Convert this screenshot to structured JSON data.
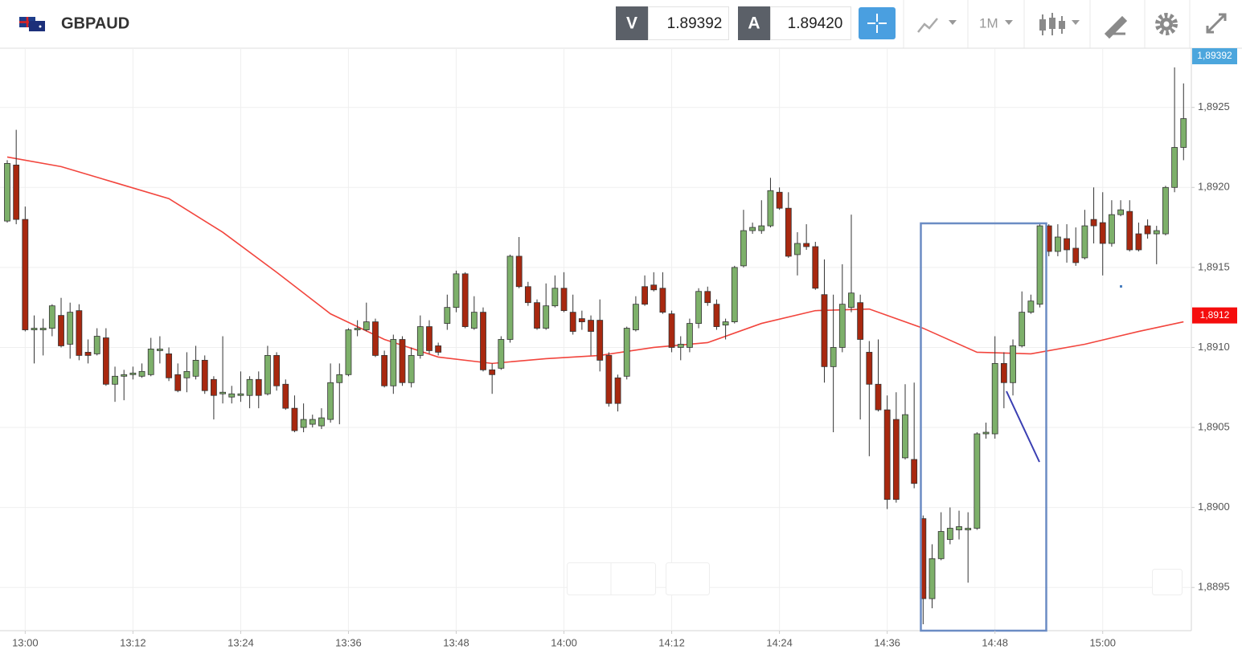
{
  "header": {
    "title": "GBPAUD",
    "bid_label": "V",
    "bid": "1.89392",
    "ask_label": "A",
    "ask": "1.89420",
    "timeframe": "1M"
  },
  "chart_data": {
    "type": "candlestick",
    "x": [
      "12:58",
      "12:59",
      "13:00",
      "13:01",
      "13:02",
      "13:03",
      "13:04",
      "13:05",
      "13:06",
      "13:07",
      "13:08",
      "13:09",
      "13:10",
      "13:11",
      "13:12",
      "13:13",
      "13:14",
      "13:15",
      "13:16",
      "13:17",
      "13:18",
      "13:19",
      "13:20",
      "13:21",
      "13:22",
      "13:23",
      "13:24",
      "13:25",
      "13:26",
      "13:27",
      "13:28",
      "13:29",
      "13:30",
      "13:31",
      "13:32",
      "13:33",
      "13:34",
      "13:35",
      "13:36",
      "13:37",
      "13:38",
      "13:39",
      "13:40",
      "13:41",
      "13:42",
      "13:43",
      "13:44",
      "13:45",
      "13:46",
      "13:47",
      "13:48",
      "13:49",
      "13:50",
      "13:51",
      "13:52",
      "13:53",
      "13:54",
      "13:55",
      "13:56",
      "13:57",
      "13:58",
      "13:59",
      "14:00",
      "14:01",
      "14:02",
      "14:03",
      "14:04",
      "14:05",
      "14:06",
      "14:07",
      "14:08",
      "14:09",
      "14:10",
      "14:11",
      "14:12",
      "14:13",
      "14:14",
      "14:15",
      "14:16",
      "14:17",
      "14:18",
      "14:19",
      "14:20",
      "14:21",
      "14:22",
      "14:23",
      "14:24",
      "14:25",
      "14:26",
      "14:27",
      "14:28",
      "14:29",
      "14:30",
      "14:31",
      "14:32",
      "14:33",
      "14:34",
      "14:35",
      "14:36",
      "14:37",
      "14:38",
      "14:39",
      "14:40",
      "14:41",
      "14:42",
      "14:43",
      "14:44",
      "14:45",
      "14:46",
      "14:47",
      "14:48",
      "14:49",
      "14:50",
      "14:51",
      "14:52",
      "14:53",
      "14:54",
      "14:55",
      "14:56",
      "14:57",
      "14:58",
      "14:59",
      "15:00",
      "15:01",
      "15:02",
      "15:03",
      "15:04",
      "15:05",
      "15:06",
      "15:07",
      "15:08",
      "15:09"
    ],
    "open": [
      1.89179,
      1.89214,
      1.8918,
      1.89111,
      1.89111,
      1.89112,
      1.8912,
      1.89102,
      1.89123,
      1.89097,
      1.89096,
      1.89106,
      1.89077,
      1.89082,
      1.89083,
      1.89082,
      1.89083,
      1.89098,
      1.89096,
      1.89083,
      1.89081,
      1.89082,
      1.89092,
      1.8908,
      1.89071,
      1.89069,
      1.8907,
      1.8907,
      1.8908,
      1.89071,
      1.89095,
      1.89077,
      1.89062,
      1.8905,
      1.89052,
      1.89051,
      1.89055,
      1.89078,
      1.89083,
      1.89111,
      1.89111,
      1.89116,
      1.89095,
      1.89076,
      1.89105,
      1.89078,
      1.89095,
      1.89113,
      1.89101,
      1.89115,
      1.89125,
      1.89146,
      1.89112,
      1.89122,
      1.89086,
      1.89087,
      1.89105,
      1.89157,
      1.89138,
      1.89128,
      1.89112,
      1.89126,
      1.89137,
      1.89122,
      1.89118,
      1.89117,
      1.89117,
      1.89095,
      1.89081,
      1.89082,
      1.89111,
      1.89138,
      1.89139,
      1.89137,
      1.89121,
      1.891,
      1.891,
      1.89115,
      1.89135,
      1.89127,
      1.89114,
      1.89116,
      1.89151,
      1.89173,
      1.89173,
      1.89176,
      1.89197,
      1.89187,
      1.89158,
      1.89165,
      1.89163,
      1.89133,
      1.89088,
      1.891,
      1.89125,
      1.89128,
      1.89097,
      1.89077,
      1.89061,
      1.89055,
      1.89031,
      1.8903,
      1.88993,
      1.88943,
      1.88968,
      1.8898,
      1.88986,
      1.88986,
      1.88987,
      1.89046,
      1.89046,
      1.8909,
      1.89078,
      1.89101,
      1.89122,
      1.89127,
      1.89176,
      1.8916,
      1.89168,
      1.89162,
      1.89156,
      1.8918,
      1.89178,
      1.89165,
      1.89183,
      1.89185,
      1.89171,
      1.89176,
      1.89171,
      1.89171,
      1.892,
      1.89225
    ],
    "high": [
      1.89217,
      1.89236,
      1.89188,
      1.8912,
      1.89118,
      1.89127,
      1.89131,
      1.89128,
      1.89127,
      1.89105,
      1.89112,
      1.89112,
      1.89088,
      1.89086,
      1.89088,
      1.8909,
      1.89106,
      1.89107,
      1.891,
      1.8909,
      1.89097,
      1.89101,
      1.89095,
      1.89082,
      1.89107,
      1.89076,
      1.89085,
      1.89082,
      1.89085,
      1.89101,
      1.89097,
      1.8908,
      1.8907,
      1.89065,
      1.89058,
      1.89062,
      1.8909,
      1.8909,
      1.89112,
      1.89117,
      1.89128,
      1.89118,
      1.89098,
      1.89108,
      1.89107,
      1.891,
      1.8912,
      1.89117,
      1.89103,
      1.89133,
      1.89148,
      1.89147,
      1.89132,
      1.89125,
      1.8909,
      1.89107,
      1.89158,
      1.89169,
      1.89141,
      1.8913,
      1.8914,
      1.89145,
      1.89147,
      1.89133,
      1.89123,
      1.8912,
      1.8913,
      1.89097,
      1.89083,
      1.89113,
      1.89132,
      1.89145,
      1.89147,
      1.89147,
      1.89123,
      1.89107,
      1.89118,
      1.89137,
      1.89138,
      1.8913,
      1.89118,
      1.89151,
      1.89186,
      1.89178,
      1.89192,
      1.89206,
      1.892,
      1.89197,
      1.89172,
      1.89177,
      1.89166,
      1.89155,
      1.89133,
      1.89152,
      1.89183,
      1.89133,
      1.89104,
      1.89105,
      1.8907,
      1.89072,
      1.89077,
      1.89078,
      1.88995,
      1.88977,
      1.88997,
      1.89,
      1.88998,
      1.88997,
      1.89047,
      1.89053,
      1.89107,
      1.89097,
      1.89105,
      1.89135,
      1.89133,
      1.89177,
      1.89177,
      1.89177,
      1.89177,
      1.89175,
      1.89186,
      1.892,
      1.89197,
      1.89192,
      1.89192,
      1.89192,
      1.89178,
      1.8918,
      1.89176,
      1.89201,
      1.89275,
      1.89265
    ],
    "low": [
      1.89178,
      1.89177,
      1.8911,
      1.8909,
      1.89095,
      1.89107,
      1.891,
      1.89093,
      1.89092,
      1.8909,
      1.89095,
      1.89076,
      1.89066,
      1.89067,
      1.8908,
      1.89081,
      1.89082,
      1.8909,
      1.89079,
      1.89072,
      1.89072,
      1.8908,
      1.89071,
      1.89055,
      1.89065,
      1.89065,
      1.89066,
      1.89062,
      1.89062,
      1.8907,
      1.89073,
      1.89061,
      1.89047,
      1.89047,
      1.8905,
      1.89049,
      1.89053,
      1.89052,
      1.89082,
      1.89107,
      1.8911,
      1.89094,
      1.89075,
      1.89071,
      1.89076,
      1.89075,
      1.89093,
      1.89096,
      1.89095,
      1.89111,
      1.89122,
      1.89112,
      1.89111,
      1.89085,
      1.89071,
      1.89086,
      1.89103,
      1.89137,
      1.89126,
      1.89111,
      1.89111,
      1.89125,
      1.89122,
      1.89108,
      1.89111,
      1.89095,
      1.89085,
      1.89063,
      1.8906,
      1.8908,
      1.8911,
      1.89126,
      1.89135,
      1.89121,
      1.89097,
      1.89092,
      1.89097,
      1.89112,
      1.89126,
      1.89111,
      1.89105,
      1.89115,
      1.8915,
      1.89171,
      1.89171,
      1.89175,
      1.89186,
      1.89156,
      1.89145,
      1.89161,
      1.89136,
      1.89078,
      1.89047,
      1.89097,
      1.89122,
      1.89055,
      1.89032,
      1.8906,
      1.88999,
      1.89003,
      1.8903,
      1.89012,
      1.88927,
      1.88937,
      1.88967,
      1.88977,
      1.8898,
      1.88953,
      1.88986,
      1.89043,
      1.89043,
      1.89062,
      1.8907,
      1.891,
      1.89121,
      1.89125,
      1.89157,
      1.89157,
      1.89153,
      1.89151,
      1.89155,
      1.89165,
      1.89145,
      1.89163,
      1.89182,
      1.8916,
      1.8916,
      1.89168,
      1.89152,
      1.8917,
      1.89197,
      1.89217
    ],
    "close": [
      1.89215,
      1.8918,
      1.89111,
      1.89112,
      1.89112,
      1.89126,
      1.89101,
      1.89122,
      1.89095,
      1.89095,
      1.89107,
      1.89077,
      1.89082,
      1.89083,
      1.89084,
      1.89085,
      1.89099,
      1.89099,
      1.89081,
      1.89073,
      1.89085,
      1.89092,
      1.89073,
      1.8907,
      1.89072,
      1.89071,
      1.89071,
      1.8908,
      1.8907,
      1.89095,
      1.89076,
      1.89062,
      1.89048,
      1.89055,
      1.89055,
      1.89056,
      1.89078,
      1.89083,
      1.89111,
      1.89112,
      1.89116,
      1.89095,
      1.89076,
      1.89105,
      1.89078,
      1.89095,
      1.89113,
      1.89098,
      1.89097,
      1.89125,
      1.89146,
      1.89113,
      1.89122,
      1.89086,
      1.89083,
      1.89105,
      1.89157,
      1.89138,
      1.89128,
      1.89112,
      1.89126,
      1.89137,
      1.89123,
      1.8911,
      1.89116,
      1.8911,
      1.89092,
      1.89065,
      1.89065,
      1.89112,
      1.89127,
      1.89127,
      1.89136,
      1.89122,
      1.891,
      1.89102,
      1.89115,
      1.89135,
      1.89128,
      1.89113,
      1.89116,
      1.8915,
      1.89173,
      1.89175,
      1.89176,
      1.89198,
      1.89187,
      1.89157,
      1.89165,
      1.89163,
      1.89137,
      1.89088,
      1.891,
      1.89127,
      1.89134,
      1.89105,
      1.89077,
      1.89061,
      1.89005,
      1.89005,
      1.89058,
      1.89015,
      1.88943,
      1.88968,
      1.88985,
      1.88987,
      1.88988,
      1.88987,
      1.89046,
      1.89047,
      1.8909,
      1.89078,
      1.89101,
      1.89122,
      1.89129,
      1.89176,
      1.8916,
      1.89169,
      1.89161,
      1.89153,
      1.89176,
      1.89176,
      1.89165,
      1.89183,
      1.89186,
      1.89161,
      1.89161,
      1.89171,
      1.89173,
      1.892,
      1.89225,
      1.89243
    ],
    "up_color": "#7db06a",
    "down_color": "#a8280f",
    "wick_color": "#333333",
    "overlays": [
      {
        "type": "line",
        "color": "#f2453d",
        "x": [
          "12:58",
          "13:04",
          "13:10",
          "13:16",
          "13:22",
          "13:28",
          "13:34",
          "13:40",
          "13:46",
          "13:52",
          "13:58",
          "14:04",
          "14:10",
          "14:16",
          "14:22",
          "14:28",
          "14:34",
          "14:40",
          "14:46",
          "14:52",
          "14:58",
          "15:04",
          "15:09"
        ],
        "values": [
          1.89219,
          1.89213,
          1.89203,
          1.89193,
          1.89172,
          1.89147,
          1.89121,
          1.89105,
          1.89094,
          1.8909,
          1.89093,
          1.89095,
          1.891,
          1.89103,
          1.89115,
          1.89123,
          1.89124,
          1.89112,
          1.89097,
          1.89096,
          1.89102,
          1.8911,
          1.89116
        ]
      }
    ],
    "price_labels": [
      {
        "value": 1.89392,
        "label": "1,89392",
        "color": "#4ca6dd"
      },
      {
        "value": 1.8912,
        "label": "1,8912",
        "color": "#f50d0d"
      }
    ],
    "ylim": [
      1.88923,
      1.89287
    ],
    "yticks": [
      {
        "value": 1.8895,
        "label": "1,8895"
      },
      {
        "value": 1.89,
        "label": "1,8900"
      },
      {
        "value": 1.8905,
        "label": "1,8905"
      },
      {
        "value": 1.891,
        "label": "1,8910"
      },
      {
        "value": 1.8915,
        "label": "1,8915"
      },
      {
        "value": 1.892,
        "label": "1,8920"
      },
      {
        "value": 1.8925,
        "label": "1,8925"
      }
    ],
    "xticks": [
      "13:00",
      "13:12",
      "13:24",
      "13:36",
      "13:48",
      "14:00",
      "14:12",
      "14:24",
      "14:36",
      "14:48",
      "15:00"
    ],
    "grid": true
  }
}
